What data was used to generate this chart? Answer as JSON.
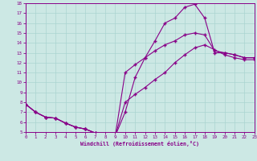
{
  "xlabel": "Windchill (Refroidissement éolien,°C)",
  "bg_color": "#cce8e4",
  "line_color": "#880088",
  "grid_color": "#aad4d0",
  "xlim": [
    0,
    23
  ],
  "ylim": [
    5,
    18
  ],
  "xticks": [
    0,
    1,
    2,
    3,
    4,
    5,
    6,
    7,
    8,
    9,
    10,
    11,
    12,
    13,
    14,
    15,
    16,
    17,
    18,
    19,
    20,
    21,
    22,
    23
  ],
  "yticks": [
    5,
    6,
    7,
    8,
    9,
    10,
    11,
    12,
    13,
    14,
    15,
    16,
    17,
    18
  ],
  "curve1_x": [
    0,
    1,
    2,
    3,
    4,
    5,
    6,
    7,
    8,
    9,
    10,
    11,
    12,
    13,
    14,
    15,
    16,
    17,
    18,
    19,
    20,
    21,
    22,
    23
  ],
  "curve1_y": [
    7.8,
    7.0,
    6.5,
    6.4,
    5.9,
    5.5,
    5.3,
    4.9,
    4.7,
    4.6,
    7.0,
    10.5,
    12.5,
    14.2,
    16.0,
    16.5,
    17.6,
    17.9,
    16.5,
    13.0,
    13.0,
    12.8,
    12.5,
    12.5
  ],
  "curve2_x": [
    0,
    1,
    2,
    3,
    4,
    5,
    6,
    7,
    8,
    9,
    10,
    11,
    12,
    13,
    14,
    15,
    16,
    17,
    18,
    19,
    20,
    21,
    22,
    23
  ],
  "curve2_y": [
    7.8,
    7.0,
    6.5,
    6.4,
    5.9,
    5.5,
    5.3,
    4.9,
    4.7,
    4.6,
    8.0,
    8.8,
    9.5,
    10.3,
    11.0,
    12.0,
    12.8,
    13.5,
    13.8,
    13.3,
    12.8,
    12.5,
    12.3,
    12.3
  ],
  "curve3_x": [
    0,
    1,
    2,
    3,
    4,
    5,
    6,
    7,
    8,
    9,
    10,
    11,
    12,
    13,
    14,
    15,
    16,
    17,
    18,
    19,
    20,
    21,
    22,
    23
  ],
  "curve3_y": [
    7.8,
    7.0,
    6.5,
    6.4,
    5.9,
    5.5,
    5.3,
    4.9,
    4.7,
    4.6,
    11.0,
    11.8,
    12.5,
    13.2,
    13.8,
    14.2,
    14.8,
    15.0,
    14.8,
    13.2,
    13.0,
    12.8,
    12.5,
    12.5
  ]
}
